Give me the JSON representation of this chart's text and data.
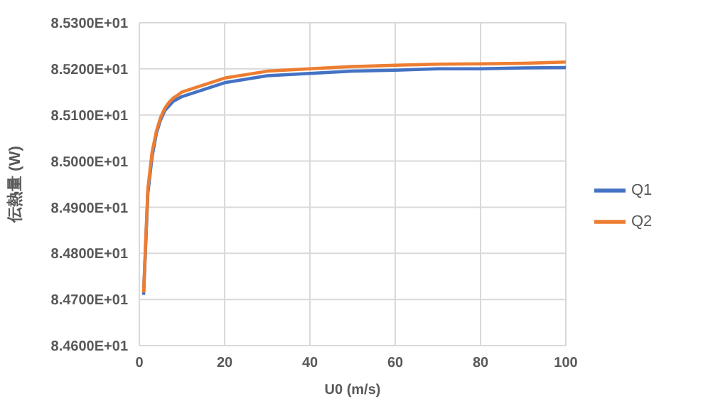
{
  "chart_data": {
    "type": "line",
    "xlabel": "U0 (m/s)",
    "ylabel": "伝熱量 (W)",
    "x": [
      1,
      2,
      3,
      4,
      5,
      6,
      7,
      8,
      9,
      10,
      20,
      30,
      40,
      50,
      60,
      70,
      80,
      90,
      100
    ],
    "series": [
      {
        "name": "Q1",
        "color": "#4472c4",
        "values": [
          84.71,
          84.93,
          85.01,
          85.06,
          85.09,
          85.11,
          85.12,
          85.13,
          85.135,
          85.14,
          85.17,
          85.185,
          85.19,
          85.195,
          85.197,
          85.2,
          85.2,
          85.202,
          85.203
        ]
      },
      {
        "name": "Q2",
        "color": "#ed7d31",
        "values": [
          84.715,
          84.94,
          85.02,
          85.065,
          85.095,
          85.115,
          85.128,
          85.137,
          85.143,
          85.15,
          85.18,
          85.195,
          85.2,
          85.205,
          85.208,
          85.21,
          85.211,
          85.212,
          85.215
        ]
      }
    ],
    "xlim": [
      0,
      100
    ],
    "xticks": [
      0,
      20,
      40,
      60,
      80,
      100
    ],
    "ylim": [
      84.6,
      85.3
    ],
    "yticks": [
      {
        "value": 84.6,
        "label": "8.4600E+01"
      },
      {
        "value": 84.7,
        "label": "8.4700E+01"
      },
      {
        "value": 84.8,
        "label": "8.4800E+01"
      },
      {
        "value": 84.9,
        "label": "8.4900E+01"
      },
      {
        "value": 85.0,
        "label": "8.5000E+01"
      },
      {
        "value": 85.1,
        "label": "8.5100E+01"
      },
      {
        "value": 85.2,
        "label": "8.5200E+01"
      },
      {
        "value": 85.3,
        "label": "8.5300E+01"
      }
    ],
    "grid": true,
    "legend": "right",
    "marker": "none",
    "line_style": "solid"
  }
}
